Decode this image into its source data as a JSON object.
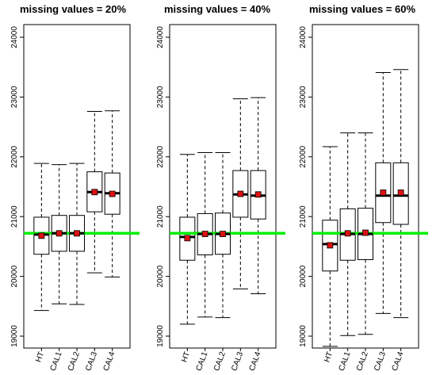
{
  "chart_data": [
    {
      "type": "box",
      "title": "missing values = 20%",
      "categories": [
        "HT",
        "CAL1",
        "CAL2",
        "CAL3",
        "CAL4"
      ],
      "ylim": [
        19000,
        24000
      ],
      "yticks": [
        "19000",
        "20000",
        "21000",
        "22000",
        "23000",
        "24000"
      ],
      "reference_line": 20720,
      "boxes": [
        {
          "min": 19430,
          "q1": 20370,
          "median": 20700,
          "q3": 20990,
          "max": 21890,
          "mean": 20680
        },
        {
          "min": 19540,
          "q1": 20420,
          "median": 20720,
          "q3": 21020,
          "max": 21870,
          "mean": 20720
        },
        {
          "min": 19530,
          "q1": 20420,
          "median": 20720,
          "q3": 21020,
          "max": 21890,
          "mean": 20720
        },
        {
          "min": 20060,
          "q1": 21080,
          "median": 21410,
          "q3": 21750,
          "max": 22760,
          "mean": 21410
        },
        {
          "min": 19990,
          "q1": 21040,
          "median": 21390,
          "q3": 21730,
          "max": 22770,
          "mean": 21380
        }
      ]
    },
    {
      "type": "box",
      "title": "missing values = 40%",
      "categories": [
        "HT",
        "CAL1",
        "CAL2",
        "CAL3",
        "CAL4"
      ],
      "ylim": [
        19000,
        24000
      ],
      "yticks": [
        "19000",
        "20000",
        "21000",
        "22000",
        "23000",
        "24000"
      ],
      "reference_line": 20720,
      "boxes": [
        {
          "min": 19200,
          "q1": 20270,
          "median": 20660,
          "q3": 20990,
          "max": 22040,
          "mean": 20640
        },
        {
          "min": 19320,
          "q1": 20360,
          "median": 20710,
          "q3": 21050,
          "max": 22070,
          "mean": 20710
        },
        {
          "min": 19310,
          "q1": 20370,
          "median": 20710,
          "q3": 21060,
          "max": 22070,
          "mean": 20710
        },
        {
          "min": 19790,
          "q1": 20990,
          "median": 21370,
          "q3": 21770,
          "max": 22970,
          "mean": 21380
        },
        {
          "min": 19710,
          "q1": 20960,
          "median": 21350,
          "q3": 21770,
          "max": 22990,
          "mean": 21370
        }
      ]
    },
    {
      "type": "box",
      "title": "missing values = 60%",
      "categories": [
        "HT",
        "CAL1",
        "CAL2",
        "CAL3",
        "CAL4"
      ],
      "ylim": [
        19000,
        24000
      ],
      "yticks": [
        "19000",
        "20000",
        "21000",
        "22000",
        "23000",
        "24000"
      ],
      "reference_line": 20720,
      "boxes": [
        {
          "min": 18830,
          "q1": 20090,
          "median": 20540,
          "q3": 20940,
          "max": 22170,
          "mean": 20520
        },
        {
          "min": 19010,
          "q1": 20270,
          "median": 20710,
          "q3": 21130,
          "max": 22400,
          "mean": 20720
        },
        {
          "min": 19030,
          "q1": 20280,
          "median": 20710,
          "q3": 21140,
          "max": 22400,
          "mean": 20730
        },
        {
          "min": 19380,
          "q1": 20900,
          "median": 21350,
          "q3": 21900,
          "max": 23410,
          "mean": 21400
        },
        {
          "min": 19310,
          "q1": 20870,
          "median": 21350,
          "q3": 21900,
          "max": 23460,
          "mean": 21400
        }
      ]
    }
  ],
  "colors": {
    "reference_line": "#00ee00",
    "mean_marker": "#dd1111",
    "box_stroke": "#000000"
  }
}
